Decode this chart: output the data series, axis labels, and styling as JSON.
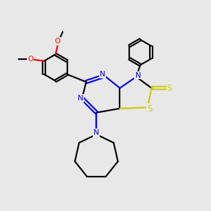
{
  "bg_color": "#e8e8e8",
  "bond_color": "#000000",
  "N_color": "#0000ee",
  "S_color": "#cccc00",
  "O_color": "#ff0000",
  "line_width": 1.6,
  "figsize": [
    3.0,
    3.0
  ],
  "dpi": 100
}
